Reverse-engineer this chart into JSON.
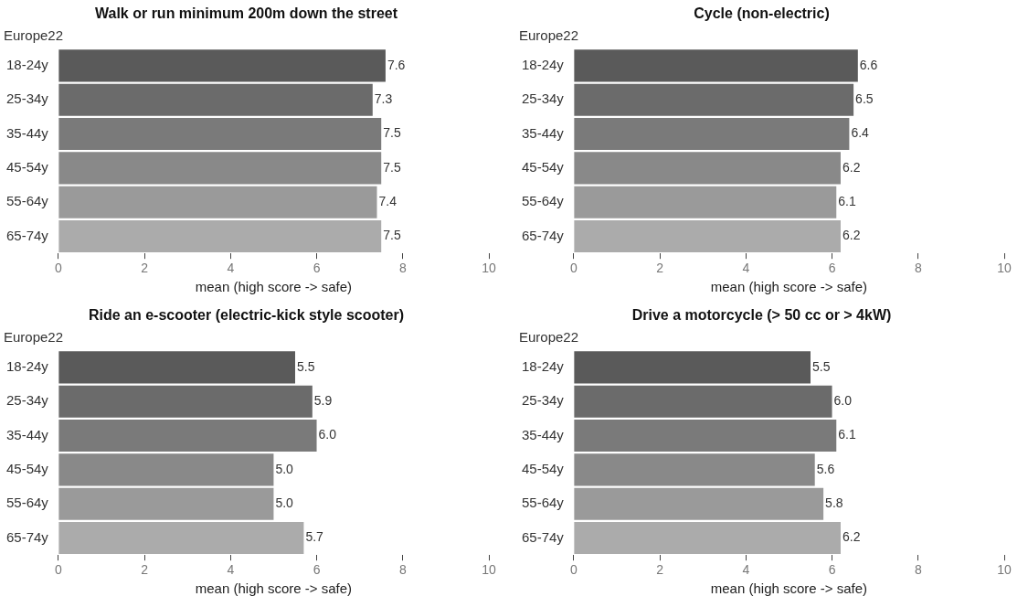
{
  "chart_data": [
    {
      "type": "bar",
      "orientation": "horizontal",
      "title": "Walk or run minimum 200m down the street",
      "subtitle": "Europe22",
      "xlabel": "mean (high score -> safe)",
      "categories": [
        "18-24y",
        "25-34y",
        "35-44y",
        "45-54y",
        "55-64y",
        "65-74y"
      ],
      "values": [
        7.6,
        7.3,
        7.5,
        7.5,
        7.4,
        7.5
      ],
      "colors": [
        "#5a5a5a",
        "#6b6b6b",
        "#7a7a7a",
        "#898989",
        "#9a9a9a",
        "#ababab"
      ],
      "xlim": [
        0,
        10
      ],
      "xticks": [
        0,
        2,
        4,
        6,
        8,
        10
      ],
      "data_labels": true,
      "grid": false,
      "legend": false
    },
    {
      "type": "bar",
      "orientation": "horizontal",
      "title": "Cycle (non-electric)",
      "subtitle": "Europe22",
      "xlabel": "mean (high score -> safe)",
      "categories": [
        "18-24y",
        "25-34y",
        "35-44y",
        "45-54y",
        "55-64y",
        "65-74y"
      ],
      "values": [
        6.6,
        6.5,
        6.4,
        6.2,
        6.1,
        6.2
      ],
      "colors": [
        "#5a5a5a",
        "#6b6b6b",
        "#7a7a7a",
        "#898989",
        "#9a9a9a",
        "#ababab"
      ],
      "xlim": [
        0,
        10
      ],
      "xticks": [
        0,
        2,
        4,
        6,
        8,
        10
      ],
      "data_labels": true,
      "grid": false,
      "legend": false
    },
    {
      "type": "bar",
      "orientation": "horizontal",
      "title": "Ride an e-scooter (electric-kick style scooter)",
      "subtitle": "Europe22",
      "xlabel": "mean (high score -> safe)",
      "categories": [
        "18-24y",
        "25-34y",
        "35-44y",
        "45-54y",
        "55-64y",
        "65-74y"
      ],
      "values": [
        5.5,
        5.9,
        6.0,
        5.0,
        5.0,
        5.7
      ],
      "value_labels": [
        "5.5",
        "5.9",
        "6.0",
        "5.0",
        "5.0",
        "5.7"
      ],
      "colors": [
        "#5a5a5a",
        "#6b6b6b",
        "#7a7a7a",
        "#898989",
        "#9a9a9a",
        "#ababab"
      ],
      "xlim": [
        0,
        10
      ],
      "xticks": [
        0,
        2,
        4,
        6,
        8,
        10
      ],
      "grid": false,
      "legend": false
    },
    {
      "type": "bar",
      "orientation": "horizontal",
      "title": "Drive a motorcycle (> 50 cc or > 4kW)",
      "subtitle": "Europe22",
      "xlabel": "mean (high score -> safe)",
      "categories": [
        "18-24y",
        "25-34y",
        "35-44y",
        "45-54y",
        "55-64y",
        "65-74y"
      ],
      "values": [
        5.5,
        6.0,
        6.1,
        5.6,
        5.8,
        6.2
      ],
      "value_labels": [
        "5.5",
        "6.0",
        "6.1",
        "5.6",
        "5.8",
        "6.2"
      ],
      "colors": [
        "#5a5a5a",
        "#6b6b6b",
        "#7a7a7a",
        "#898989",
        "#9a9a9a",
        "#ababab"
      ],
      "xlim": [
        0,
        10
      ],
      "xticks": [
        0,
        2,
        4,
        6,
        8,
        10
      ],
      "grid": false,
      "legend": false
    }
  ]
}
